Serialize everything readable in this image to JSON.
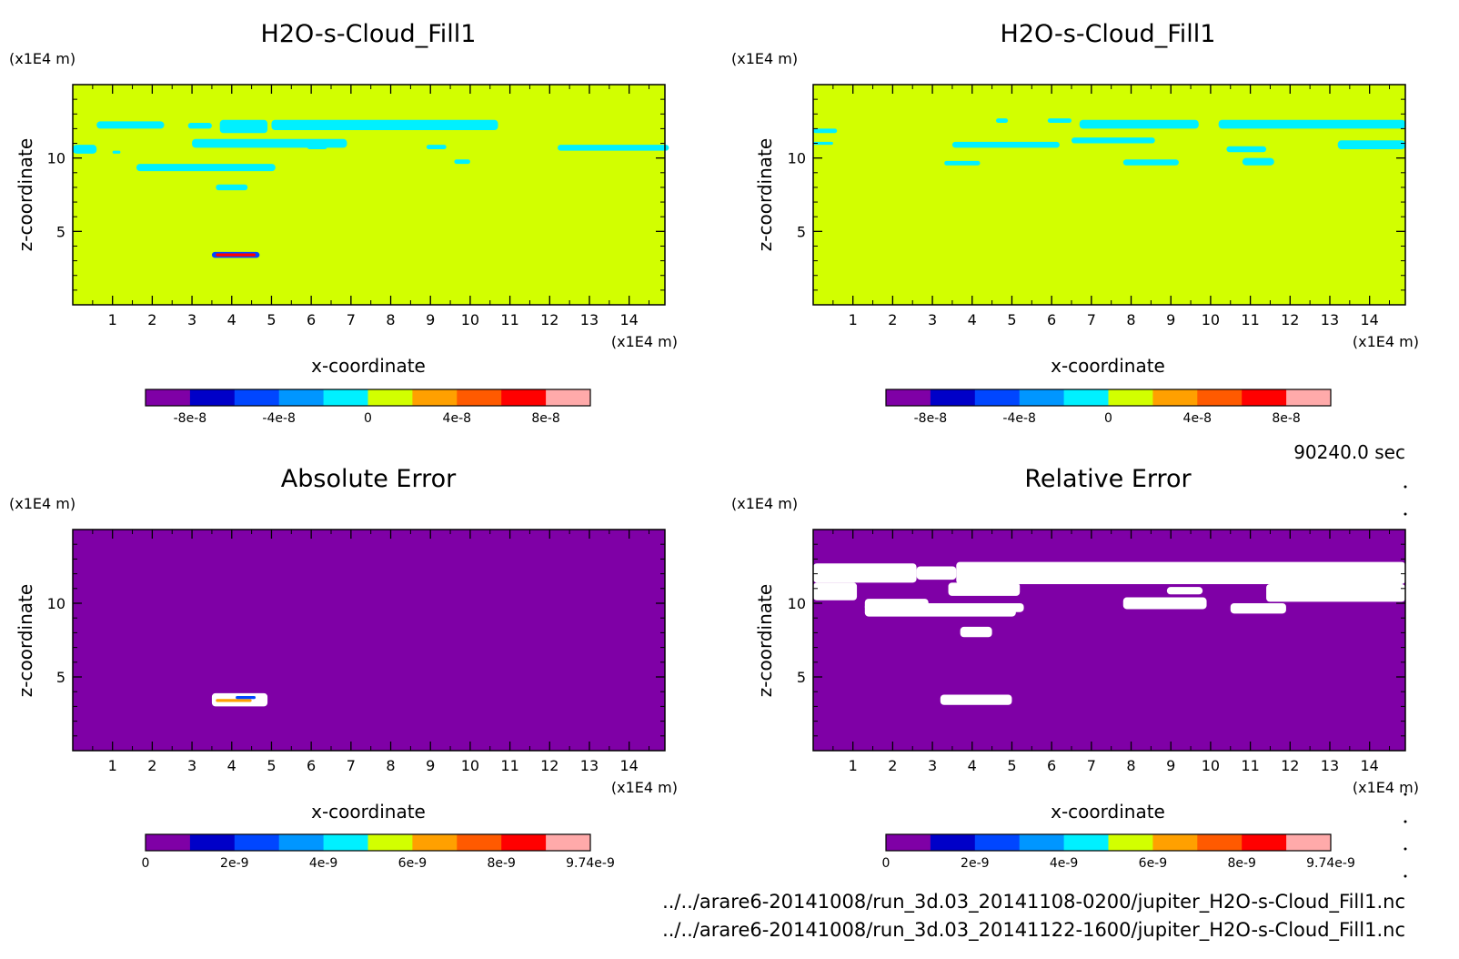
{
  "chart_data": [
    {
      "type": "heatmap",
      "title": "H2O-s-Cloud_Fill1",
      "xlabel": "x-coordinate",
      "ylabel": "z-coordinate",
      "x_unit": "(x1E4 m)",
      "y_unit": "(x1E4 m)",
      "xlim": [
        0,
        14.9
      ],
      "ylim": [
        0,
        15
      ],
      "x_ticks": [
        "1",
        "2",
        "3",
        "4",
        "5",
        "6",
        "7",
        "8",
        "9",
        "10",
        "11",
        "12",
        "13",
        "14"
      ],
      "y_ticks": [
        "5",
        "10"
      ],
      "colorbar": {
        "colors": [
          "#7f00a6",
          "#0000c8",
          "#0046ff",
          "#0096ff",
          "#00f0ff",
          "#d2ff00",
          "#ffa000",
          "#ff5a00",
          "#ff0000",
          "#ffaaaa"
        ],
        "tick_labels": [
          "-8e-8",
          "-4e-8",
          "0",
          "4e-8",
          "8e-8"
        ]
      },
      "background_value_color": "#d2ff00",
      "regions": [
        {
          "x": [
            0.6,
            2.3
          ],
          "z": [
            12.0,
            12.5
          ],
          "color": "#00f0ff"
        },
        {
          "x": [
            2.9,
            3.5
          ],
          "z": [
            12.0,
            12.4
          ],
          "color": "#00f0ff"
        },
        {
          "x": [
            3.7,
            4.9
          ],
          "z": [
            11.7,
            12.6
          ],
          "color": "#00f0ff"
        },
        {
          "x": [
            5.0,
            10.7
          ],
          "z": [
            11.9,
            12.6
          ],
          "color": "#00f0ff"
        },
        {
          "x": [
            0.0,
            0.6
          ],
          "z": [
            10.3,
            10.9
          ],
          "color": "#00f0ff"
        },
        {
          "x": [
            1.0,
            1.2
          ],
          "z": [
            10.3,
            10.5
          ],
          "color": "#00f0ff"
        },
        {
          "x": [
            3.0,
            6.9
          ],
          "z": [
            10.7,
            11.3
          ],
          "color": "#00f0ff"
        },
        {
          "x": [
            5.9,
            6.4
          ],
          "z": [
            10.6,
            10.9
          ],
          "color": "#00f0ff"
        },
        {
          "x": [
            8.9,
            9.4
          ],
          "z": [
            10.6,
            10.9
          ],
          "color": "#00f0ff"
        },
        {
          "x": [
            12.2,
            15.0
          ],
          "z": [
            10.5,
            10.9
          ],
          "color": "#00f0ff"
        },
        {
          "x": [
            9.6,
            10.0
          ],
          "z": [
            9.6,
            9.9
          ],
          "color": "#00f0ff"
        },
        {
          "x": [
            1.6,
            5.1
          ],
          "z": [
            9.1,
            9.6
          ],
          "color": "#00f0ff"
        },
        {
          "x": [
            3.6,
            4.4
          ],
          "z": [
            7.8,
            8.2
          ],
          "color": "#00f0ff"
        },
        {
          "x": [
            3.5,
            4.7
          ],
          "z": [
            3.2,
            3.6
          ],
          "color": "#0046ff"
        },
        {
          "x": [
            3.6,
            4.6
          ],
          "z": [
            3.3,
            3.5
          ],
          "color": "#ff0000"
        }
      ]
    },
    {
      "type": "heatmap",
      "title": "H2O-s-Cloud_Fill1",
      "xlabel": "x-coordinate",
      "ylabel": "z-coordinate",
      "x_unit": "(x1E4 m)",
      "y_unit": "(x1E4 m)",
      "xlim": [
        0,
        14.9
      ],
      "ylim": [
        0,
        15
      ],
      "x_ticks": [
        "1",
        "2",
        "3",
        "4",
        "5",
        "6",
        "7",
        "8",
        "9",
        "10",
        "11",
        "12",
        "13",
        "14"
      ],
      "y_ticks": [
        "5",
        "10"
      ],
      "colorbar": {
        "colors": [
          "#7f00a6",
          "#0000c8",
          "#0046ff",
          "#0096ff",
          "#00f0ff",
          "#d2ff00",
          "#ffa000",
          "#ff5a00",
          "#ff0000",
          "#ffaaaa"
        ],
        "tick_labels": [
          "-8e-8",
          "-4e-8",
          "0",
          "4e-8",
          "8e-8"
        ]
      },
      "time_label": "90240.0 sec",
      "background_value_color": "#d2ff00",
      "regions": [
        {
          "x": [
            0.0,
            0.6
          ],
          "z": [
            11.7,
            12.0
          ],
          "color": "#00f0ff"
        },
        {
          "x": [
            0.0,
            0.5
          ],
          "z": [
            10.9,
            11.1
          ],
          "color": "#00f0ff"
        },
        {
          "x": [
            4.6,
            4.9
          ],
          "z": [
            12.4,
            12.7
          ],
          "color": "#00f0ff"
        },
        {
          "x": [
            5.9,
            6.5
          ],
          "z": [
            12.4,
            12.7
          ],
          "color": "#00f0ff"
        },
        {
          "x": [
            6.7,
            9.7
          ],
          "z": [
            12.0,
            12.6
          ],
          "color": "#00f0ff"
        },
        {
          "x": [
            10.2,
            14.9
          ],
          "z": [
            12.0,
            12.6
          ],
          "color": "#00f0ff"
        },
        {
          "x": [
            3.5,
            6.2
          ],
          "z": [
            10.7,
            11.1
          ],
          "color": "#00f0ff"
        },
        {
          "x": [
            6.5,
            8.6
          ],
          "z": [
            11.0,
            11.4
          ],
          "color": "#00f0ff"
        },
        {
          "x": [
            10.4,
            11.4
          ],
          "z": [
            10.4,
            10.8
          ],
          "color": "#00f0ff"
        },
        {
          "x": [
            13.2,
            14.9
          ],
          "z": [
            10.6,
            11.2
          ],
          "color": "#00f0ff"
        },
        {
          "x": [
            3.3,
            4.2
          ],
          "z": [
            9.5,
            9.8
          ],
          "color": "#00f0ff"
        },
        {
          "x": [
            7.8,
            9.2
          ],
          "z": [
            9.5,
            9.9
          ],
          "color": "#00f0ff"
        },
        {
          "x": [
            10.8,
            11.6
          ],
          "z": [
            9.5,
            10.0
          ],
          "color": "#00f0ff"
        }
      ]
    },
    {
      "type": "heatmap",
      "title": "Absolute Error",
      "xlabel": "x-coordinate",
      "ylabel": "z-coordinate",
      "x_unit": "(x1E4 m)",
      "y_unit": "(x1E4 m)",
      "xlim": [
        0,
        14.9
      ],
      "ylim": [
        0,
        15
      ],
      "x_ticks": [
        "1",
        "2",
        "3",
        "4",
        "5",
        "6",
        "7",
        "8",
        "9",
        "10",
        "11",
        "12",
        "13",
        "14"
      ],
      "y_ticks": [
        "5",
        "10"
      ],
      "colorbar": {
        "colors": [
          "#7f00a6",
          "#0000c8",
          "#0046ff",
          "#0096ff",
          "#00f0ff",
          "#d2ff00",
          "#ffa000",
          "#ff5a00",
          "#ff0000",
          "#ffaaaa"
        ],
        "tick_labels": [
          "0",
          "2e-9",
          "4e-9",
          "6e-9",
          "8e-9",
          "9.74e-9"
        ]
      },
      "background_value_color": "#7f00a6",
      "regions": [
        {
          "x": [
            3.5,
            4.9
          ],
          "z": [
            3.0,
            3.9
          ],
          "color": "#ffffff"
        },
        {
          "x": [
            3.6,
            4.5
          ],
          "z": [
            3.3,
            3.5
          ],
          "color": "#ffa000"
        },
        {
          "x": [
            4.1,
            4.6
          ],
          "z": [
            3.5,
            3.7
          ],
          "color": "#0046ff"
        }
      ]
    },
    {
      "type": "heatmap",
      "title": "Relative Error",
      "xlabel": "x-coordinate",
      "ylabel": "z-coordinate",
      "x_unit": "(x1E4 m)",
      "y_unit": "(x1E4 m)",
      "xlim": [
        0,
        14.9
      ],
      "ylim": [
        0,
        15
      ],
      "x_ticks": [
        "1",
        "2",
        "3",
        "4",
        "5",
        "6",
        "7",
        "8",
        "9",
        "10",
        "11",
        "12",
        "13",
        "14"
      ],
      "y_ticks": [
        "5",
        "10"
      ],
      "colorbar": {
        "colors": [
          "#7f00a6",
          "#0000c8",
          "#0046ff",
          "#0096ff",
          "#00f0ff",
          "#d2ff00",
          "#ffa000",
          "#ff5a00",
          "#ff0000",
          "#ffaaaa"
        ],
        "tick_labels": [
          "0",
          "2e-9",
          "4e-9",
          "6e-9",
          "8e-9",
          "9.74e-9"
        ]
      },
      "background_value_color": "#7f00a6",
      "regions": [
        {
          "x": [
            0.0,
            2.6
          ],
          "z": [
            11.4,
            12.7
          ],
          "color": "#ffffff"
        },
        {
          "x": [
            0.0,
            1.1
          ],
          "z": [
            10.2,
            11.4
          ],
          "color": "#ffffff"
        },
        {
          "x": [
            2.6,
            3.6
          ],
          "z": [
            11.6,
            12.5
          ],
          "color": "#ffffff"
        },
        {
          "x": [
            3.6,
            14.9
          ],
          "z": [
            11.3,
            12.8
          ],
          "color": "#ffffff"
        },
        {
          "x": [
            3.4,
            5.2
          ],
          "z": [
            10.5,
            11.4
          ],
          "color": "#ffffff"
        },
        {
          "x": [
            8.9,
            9.8
          ],
          "z": [
            10.6,
            11.1
          ],
          "color": "#ffffff"
        },
        {
          "x": [
            11.4,
            14.9
          ],
          "z": [
            10.1,
            11.3
          ],
          "color": "#ffffff"
        },
        {
          "x": [
            1.3,
            5.1
          ],
          "z": [
            9.1,
            10.0
          ],
          "color": "#ffffff"
        },
        {
          "x": [
            1.3,
            2.9
          ],
          "z": [
            9.5,
            10.3
          ],
          "color": "#ffffff"
        },
        {
          "x": [
            4.7,
            5.3
          ],
          "z": [
            9.4,
            10.0
          ],
          "color": "#ffffff"
        },
        {
          "x": [
            7.8,
            9.9
          ],
          "z": [
            9.6,
            10.4
          ],
          "color": "#ffffff"
        },
        {
          "x": [
            10.5,
            11.9
          ],
          "z": [
            9.3,
            10.0
          ],
          "color": "#ffffff"
        },
        {
          "x": [
            3.7,
            4.5
          ],
          "z": [
            7.7,
            8.4
          ],
          "color": "#ffffff"
        },
        {
          "x": [
            3.2,
            5.0
          ],
          "z": [
            3.1,
            3.8
          ],
          "color": "#ffffff"
        }
      ]
    }
  ],
  "footer": {
    "file_1": "../../arare6-20141008/run_3d.03_20141108-0200/jupiter_H2O-s-Cloud_Fill1.nc",
    "file_2": "../../arare6-20141008/run_3d.03_20141122-1600/jupiter_H2O-s-Cloud_Fill1.nc"
  }
}
